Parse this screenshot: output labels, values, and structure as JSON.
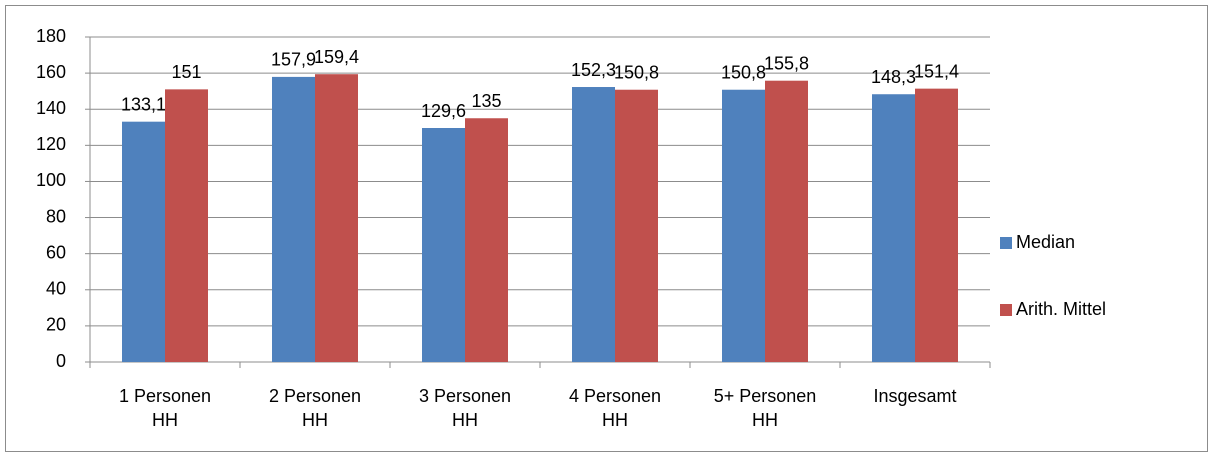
{
  "chart_data": {
    "type": "bar",
    "categories": [
      "1 Personen HH",
      "2 Personen HH",
      "3 Personen HH",
      "4 Personen HH",
      "5+ Personen HH",
      "Insgesamt"
    ],
    "series": [
      {
        "name": "Median",
        "color": "#4f81bd",
        "values": [
          133.1,
          157.9,
          129.6,
          152.3,
          150.8,
          148.3
        ],
        "value_labels": [
          "133,1",
          "157,9",
          "129,6",
          "152,3",
          "150,8",
          "148,3"
        ]
      },
      {
        "name": "Arith. Mittel",
        "color": "#c0504d",
        "values": [
          151,
          159.4,
          135,
          150.8,
          155.8,
          151.4
        ],
        "value_labels": [
          "151",
          "159,4",
          "135",
          "150,8",
          "155,8",
          "151,4"
        ]
      }
    ],
    "ylim": [
      0,
      180
    ],
    "yticks": [
      0,
      20,
      40,
      60,
      80,
      100,
      120,
      140,
      160,
      180
    ],
    "grid": true,
    "legend": "right"
  }
}
